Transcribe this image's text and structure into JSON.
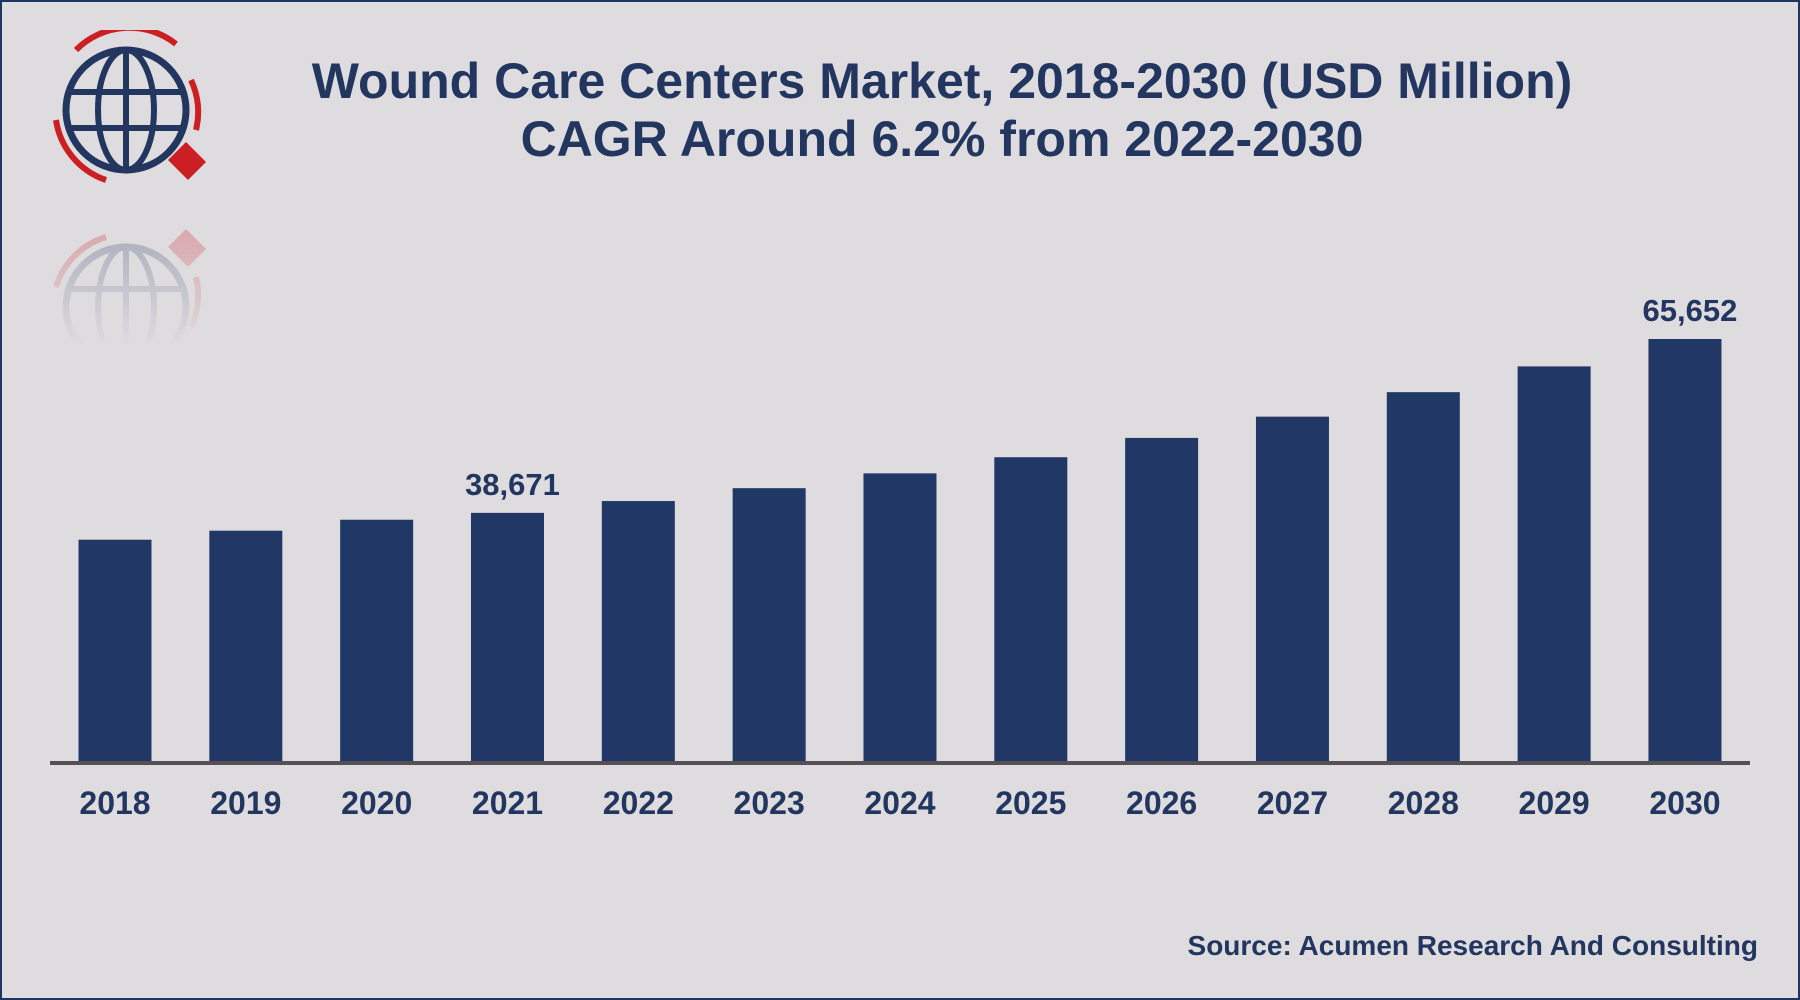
{
  "title_line1": "Wound Care Centers Market, 2018-2030 (USD Million)",
  "title_line2": "CAGR Around 6.2% from 2022-2030",
  "source": "Source: Acumen Research And Consulting",
  "colors": {
    "bar": "#213765",
    "text": "#22365f",
    "axis": "#555055",
    "logo_red": "#cc1f24",
    "background": "#dedcdf"
  },
  "icons": {
    "logo": "globe-logo-icon"
  },
  "chart_data": {
    "type": "bar",
    "title": "Wound Care Centers Market, 2018-2030 (USD Million)",
    "subtitle": "CAGR Around 6.2% from 2022-2030",
    "xlabel": "",
    "ylabel": "",
    "categories": [
      "2018",
      "2019",
      "2020",
      "2021",
      "2022",
      "2023",
      "2024",
      "2025",
      "2026",
      "2027",
      "2028",
      "2029",
      "2030"
    ],
    "values": [
      34500,
      35900,
      37600,
      38671,
      40500,
      42500,
      44800,
      47300,
      50300,
      53600,
      57400,
      61400,
      65652
    ],
    "data_labels": [
      {
        "category": "2021",
        "text": "38,671"
      },
      {
        "category": "2030",
        "text": "65,652"
      }
    ],
    "ylim": [
      0,
      65652
    ],
    "grid": false,
    "legend": "none"
  }
}
